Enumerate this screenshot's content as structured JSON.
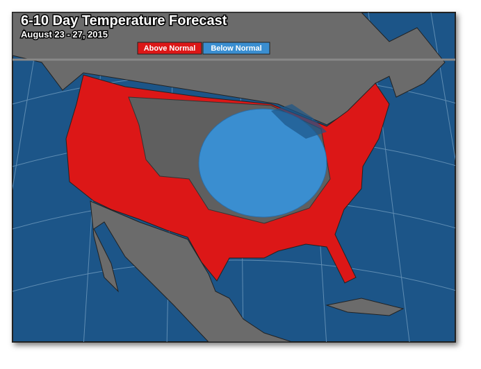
{
  "header": {
    "title": "6-10 Day Temperature Forecast",
    "subtitle": "August 23 - 27, 2015"
  },
  "legend": [
    {
      "label": "Above Normal"
    },
    {
      "label": "Below Normal"
    }
  ]
}
